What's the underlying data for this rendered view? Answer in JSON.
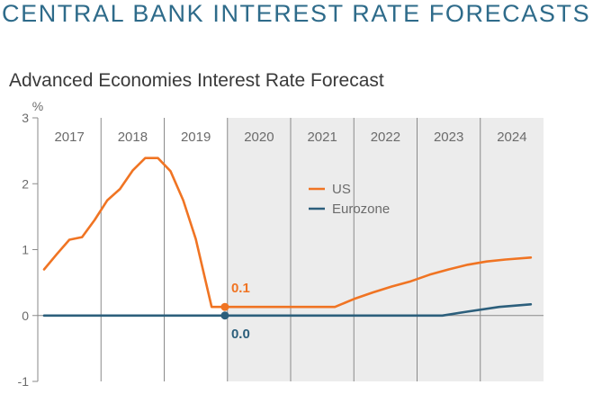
{
  "header": {
    "title": "CENTRAL BANK INTEREST RATE FORECASTS"
  },
  "colors": {
    "us": "#f07423",
    "eurozone": "#2c5f7c",
    "forecast_shade": "#ececec",
    "title": "#2e6b8a"
  },
  "chart_data": {
    "type": "line",
    "title": "Advanced Economies Interest Rate Forecast",
    "ylabel": "%",
    "ylim": [
      -1,
      3
    ],
    "yticks": [
      -1,
      0,
      1,
      2,
      3
    ],
    "xlim": [
      2017,
      2025
    ],
    "categories": [
      "2017",
      "2018",
      "2019",
      "2020",
      "2021",
      "2022",
      "2023",
      "2024"
    ],
    "forecast_start": 2020,
    "grid": true,
    "legend_position": "center",
    "series": [
      {
        "name": "US",
        "color": "#f07423",
        "x": [
          2017.1,
          2017.3,
          2017.5,
          2017.7,
          2017.9,
          2018.1,
          2018.3,
          2018.5,
          2018.7,
          2018.9,
          2019.1,
          2019.3,
          2019.5,
          2019.75,
          2019.96,
          2020.2,
          2020.5,
          2020.8,
          2021.1,
          2021.4,
          2021.7,
          2022.0,
          2022.3,
          2022.6,
          2022.9,
          2023.2,
          2023.5,
          2023.8,
          2024.1,
          2024.4,
          2024.8
        ],
        "values": [
          0.7,
          0.93,
          1.15,
          1.19,
          1.45,
          1.75,
          1.92,
          2.2,
          2.39,
          2.39,
          2.19,
          1.75,
          1.16,
          0.13,
          0.13,
          0.13,
          0.13,
          0.13,
          0.13,
          0.13,
          0.13,
          0.25,
          0.35,
          0.44,
          0.52,
          0.62,
          0.7,
          0.77,
          0.82,
          0.85,
          0.88
        ]
      },
      {
        "name": "Eurozone",
        "color": "#2c5f7c",
        "x": [
          2017.1,
          2019.96,
          2023.4,
          2023.8,
          2024.3,
          2024.8
        ],
        "values": [
          0.0,
          0.0,
          0.0,
          0.06,
          0.13,
          0.17
        ]
      }
    ],
    "annotations": [
      {
        "series": "US",
        "x": 2019.96,
        "y": 0.13,
        "label": "0.1"
      },
      {
        "series": "Eurozone",
        "x": 2019.96,
        "y": 0.0,
        "label": "0.0"
      }
    ]
  }
}
